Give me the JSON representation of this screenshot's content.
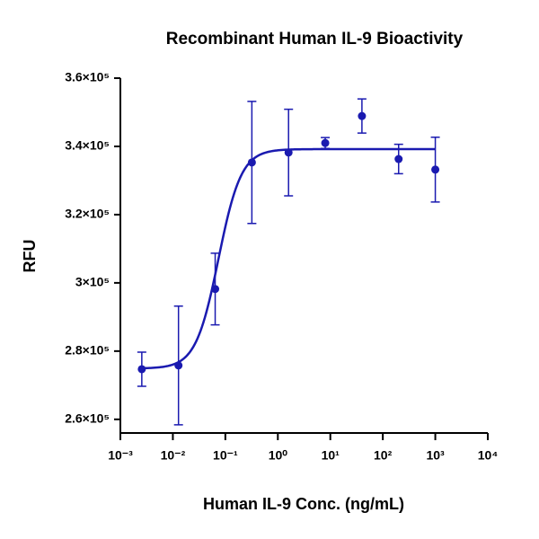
{
  "chart_data": {
    "type": "scatter",
    "title": "Recombinant Human IL-9 Bioactivity",
    "x_label": "Human IL-9 Conc. (ng/mL)",
    "y_label": "RFU",
    "x_scale": "log",
    "xlim": [
      0.001,
      10000
    ],
    "xticks": [
      {
        "value": 0.001,
        "label": "10⁻³"
      },
      {
        "value": 0.01,
        "label": "10⁻²"
      },
      {
        "value": 0.1,
        "label": "10⁻¹"
      },
      {
        "value": 1,
        "label": "10⁰"
      },
      {
        "value": 10,
        "label": "10¹"
      },
      {
        "value": 100,
        "label": "10²"
      },
      {
        "value": 1000,
        "label": "10³"
      },
      {
        "value": 10000,
        "label": "10⁴"
      }
    ],
    "ylim": [
      256000,
      360000
    ],
    "yticks": [
      {
        "value": 260000,
        "label": "2.6×10⁵"
      },
      {
        "value": 280000,
        "label": "2.8×10⁵"
      },
      {
        "value": 300000,
        "label": "3×10⁵"
      },
      {
        "value": 320000,
        "label": "3.2×10⁵"
      },
      {
        "value": 340000,
        "label": "3.4×10⁵"
      },
      {
        "value": 360000,
        "label": "3.6×10⁵"
      }
    ],
    "color": "#1a1ab0",
    "x": [
      0.00256,
      0.0128,
      0.064,
      0.32,
      1.6,
      8,
      40,
      200,
      1000
    ],
    "values": [
      274700,
      275800,
      298200,
      335300,
      338200,
      341000,
      348900,
      336300,
      333200
    ],
    "errors": [
      5000,
      17400,
      10500,
      17900,
      12700,
      1600,
      5000,
      4300,
      9500
    ],
    "curve": {
      "bottom": 274900,
      "top": 339200,
      "ec50": 0.074,
      "hill": 2
    }
  }
}
